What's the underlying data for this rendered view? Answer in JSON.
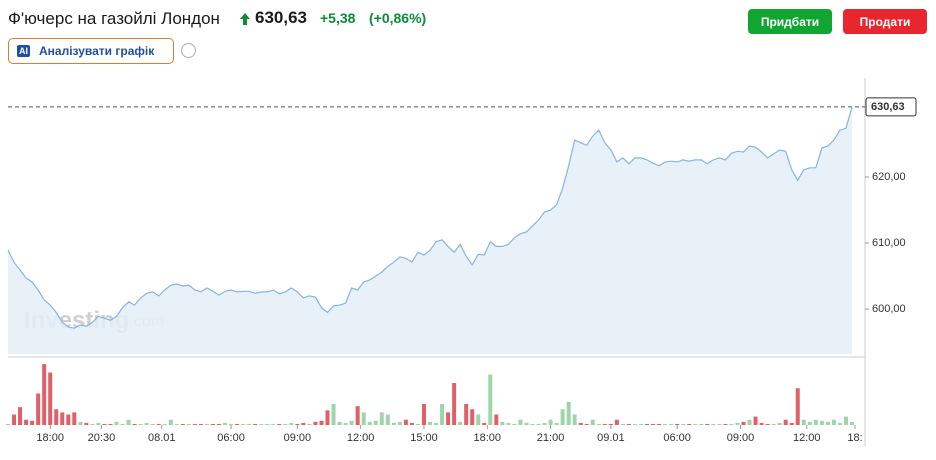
{
  "header": {
    "title": "Ф'ючерс на газойлі Лондон",
    "price": "630,63",
    "change": "+5,38",
    "change_percent": "(+0,86%)",
    "analyze_icon": "AI",
    "analyze": "Аналізувати графік",
    "buy": "Придбати",
    "sell": "Продати"
  },
  "chart_data": {
    "type": "area",
    "watermark": "Investing",
    "watermark_suffix": ".com",
    "color": "#8ab4dc",
    "fill": "#e4edf7",
    "values": [
      608.9,
      607.1,
      605.9,
      604.7,
      604.1,
      602.9,
      601.4,
      600.6,
      599.5,
      598.0,
      597.3,
      597.1,
      597.6,
      597.4,
      598.0,
      598.9,
      598.6,
      598.3,
      598.9,
      600.2,
      601.1,
      600.6,
      601.7,
      602.4,
      602.6,
      602.0,
      602.9,
      603.6,
      603.8,
      603.5,
      603.6,
      602.9,
      602.6,
      603.2,
      602.7,
      602.1,
      602.7,
      602.9,
      602.6,
      602.7,
      602.7,
      602.4,
      602.6,
      602.6,
      602.9,
      602.3,
      602.6,
      603.2,
      602.6,
      601.7,
      602.0,
      601.8,
      600.2,
      599.5,
      600.5,
      600.6,
      600.9,
      603.2,
      602.9,
      604.1,
      604.4,
      605.0,
      605.6,
      606.5,
      607.1,
      607.9,
      607.7,
      607.1,
      608.6,
      608.2,
      608.9,
      610.2,
      610.5,
      609.5,
      608.6,
      609.8,
      608.0,
      606.7,
      608.3,
      608.2,
      610.2,
      609.5,
      609.5,
      609.8,
      610.8,
      611.4,
      611.7,
      612.6,
      613.5,
      614.7,
      615.0,
      615.8,
      618.3,
      621.7,
      625.6,
      625.2,
      624.8,
      626.2,
      627.1,
      625.2,
      624.1,
      622.3,
      622.9,
      622.0,
      622.9,
      622.9,
      622.6,
      622.1,
      621.7,
      622.3,
      622.4,
      622.3,
      622.6,
      622.4,
      622.6,
      622.6,
      622.0,
      622.6,
      622.9,
      622.6,
      623.6,
      623.9,
      623.8,
      624.7,
      624.5,
      623.8,
      622.9,
      623.5,
      624.1,
      623.9,
      621.1,
      619.5,
      621.1,
      621.4,
      621.4,
      624.4,
      624.7,
      625.6,
      627.1,
      627.4,
      630.63
    ],
    "volumes": [
      1,
      10,
      17,
      5,
      4,
      30,
      58,
      50,
      15,
      12,
      10,
      12,
      3,
      2,
      1,
      2,
      1,
      1,
      3,
      1,
      5,
      1,
      1,
      2,
      1,
      1,
      1,
      5,
      1,
      1,
      1,
      1,
      1,
      1,
      1,
      1,
      2,
      1,
      1,
      1,
      1,
      1,
      1,
      1,
      1,
      1,
      1,
      2,
      1,
      2,
      1,
      3,
      4,
      14,
      20,
      3,
      2,
      4,
      18,
      12,
      3,
      4,
      12,
      10,
      2,
      3,
      5,
      2,
      1,
      20,
      3,
      2,
      20,
      12,
      40,
      3,
      20,
      15,
      10,
      2,
      48,
      10,
      3,
      2,
      1,
      5,
      2,
      1,
      1,
      2,
      5,
      2,
      15,
      22,
      10,
      2,
      1,
      5,
      1,
      1,
      1,
      5,
      1,
      1,
      1,
      1,
      1,
      1,
      1,
      1,
      1,
      1,
      1,
      1,
      1,
      1,
      1,
      1,
      1,
      1,
      1,
      2,
      3,
      5,
      8,
      2,
      1,
      1,
      2,
      5,
      2,
      35,
      5,
      3,
      5,
      4,
      3,
      5,
      2,
      8,
      3
    ],
    "up_color": "#9fd4ab",
    "down_color": "#e0606a",
    "vlim": [
      0,
      60
    ],
    "xlim": [
      0,
      140
    ],
    "xticks": [
      {
        "value": 7,
        "label": "18:00"
      },
      {
        "value": 15.5,
        "label": "20:30"
      },
      {
        "value": 25.5,
        "label": "08.01"
      },
      {
        "value": 37,
        "label": "06:00"
      },
      {
        "value": 48,
        "label": "09:00"
      },
      {
        "value": 58.5,
        "label": "12:00"
      },
      {
        "value": 69,
        "label": "15:00"
      },
      {
        "value": 79.5,
        "label": "18:00"
      },
      {
        "value": 90,
        "label": "21:00"
      },
      {
        "value": 100,
        "label": "09.01"
      },
      {
        "value": 111,
        "label": "06:00"
      },
      {
        "value": 121.5,
        "label": "09:00"
      },
      {
        "value": 132.5,
        "label": "12:00"
      },
      {
        "value": 140.5,
        "label": "18:"
      }
    ],
    "ylim": [
      593.2,
      635
    ],
    "yticks": [
      {
        "value": 600,
        "label": "600,00"
      },
      {
        "value": 610,
        "label": "610,00"
      },
      {
        "value": 620,
        "label": "620,00"
      }
    ],
    "price_marker": {
      "value": 630.63,
      "label": "630,63"
    }
  }
}
